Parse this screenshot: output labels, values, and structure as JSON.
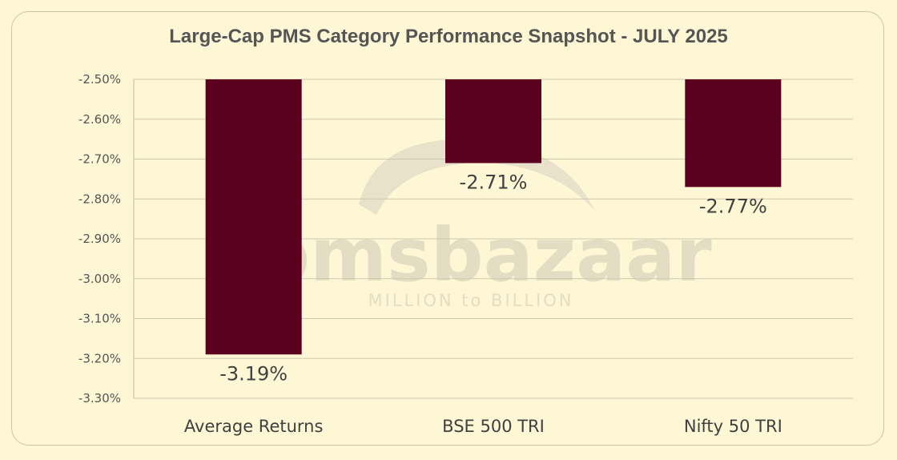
{
  "chart_data": {
    "type": "bar",
    "title": "Large-Cap PMS Category Performance Snapshot - JULY 2025",
    "categories": [
      "Average Returns",
      "BSE 500 TRI",
      "Nifty 50 TRI"
    ],
    "values": [
      -3.19,
      -2.71,
      -2.77
    ],
    "data_labels": [
      "-3.19%",
      "-2.71%",
      "-2.77%"
    ],
    "ylim": [
      -3.3,
      -2.5
    ],
    "yticks": [
      -2.5,
      -2.6,
      -2.7,
      -2.8,
      -2.9,
      -3.0,
      -3.1,
      -3.2,
      -3.3
    ],
    "ytick_labels": [
      "-2.50%",
      "-2.60%",
      "-2.70%",
      "-2.80%",
      "-2.90%",
      "-3.00%",
      "-3.10%",
      "-3.20%",
      "-3.30%"
    ],
    "grid": true,
    "bar_color": "#5c0020",
    "xlabel": "",
    "ylabel": ""
  },
  "watermark": {
    "brand": "pmsbazaar",
    "tagline": "MILLION to BILLION",
    "color": "#e3ddc4"
  }
}
